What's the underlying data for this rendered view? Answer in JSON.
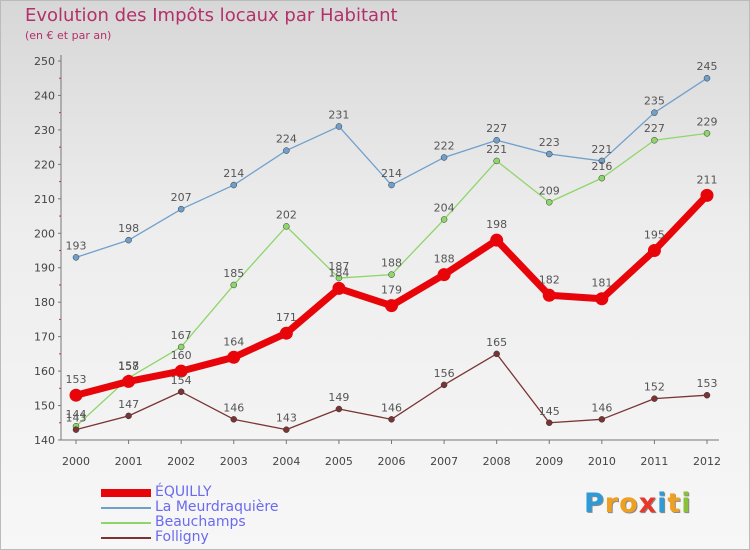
{
  "title": "Evolution des Impôts locaux par Habitant",
  "subtitle": "(en € et par an)",
  "logo": {
    "letters": [
      "P",
      "r",
      "o",
      "x",
      "i",
      "t",
      "i"
    ],
    "colors": [
      "#2e9bd6",
      "#f0a020",
      "#f0a020",
      "#e8382c",
      "#2e9bd6",
      "#f0a020",
      "#8ac03a"
    ]
  },
  "chart_data": {
    "type": "line",
    "x": [
      "2000",
      "2001",
      "2002",
      "2003",
      "2004",
      "2005",
      "2006",
      "2007",
      "2008",
      "2009",
      "2010",
      "2011",
      "2012"
    ],
    "ylim": [
      140,
      250
    ],
    "yticks": [
      140,
      150,
      160,
      170,
      180,
      190,
      200,
      210,
      220,
      230,
      240,
      250
    ],
    "grid": false,
    "legend": "bottom-left",
    "series": [
      {
        "name": "ÉQUILLY",
        "color": "#e8050a",
        "values": [
          153,
          157,
          160,
          164,
          171,
          184,
          179,
          188,
          198,
          182,
          181,
          195,
          211
        ],
        "labels": [
          "153",
          "157",
          "160",
          "164",
          "171",
          "184",
          "179",
          "188",
          "198",
          "182",
          "181",
          "195",
          "211"
        ]
      },
      {
        "name": "La Meurdraquière",
        "color": "#6fa0cc",
        "values": [
          193,
          198,
          207,
          214,
          224,
          231,
          214,
          222,
          227,
          223,
          221,
          235,
          245
        ],
        "labels": [
          "193",
          "198",
          "207",
          "214",
          "224",
          "231",
          "214",
          "222",
          "227",
          "223",
          "221",
          "235",
          "245"
        ]
      },
      {
        "name": "Beauchamps",
        "color": "#8ed66a",
        "values": [
          144,
          158,
          167,
          185,
          202,
          187,
          188,
          204,
          221,
          209,
          216,
          227,
          229
        ],
        "labels": [
          "144",
          "158",
          "167",
          "185",
          "202",
          "187",
          "188",
          "204",
          "221",
          "209",
          "216",
          "227",
          "229"
        ]
      },
      {
        "name": "Folligny",
        "color": "#7a3434",
        "values": [
          143,
          147,
          154,
          146,
          143,
          149,
          146,
          156,
          165,
          145,
          146,
          152,
          153
        ],
        "labels": [
          "143",
          "147",
          "154",
          "146",
          "143",
          "149",
          "146",
          "156",
          "165",
          "145",
          "146",
          "152",
          "153"
        ]
      }
    ]
  }
}
